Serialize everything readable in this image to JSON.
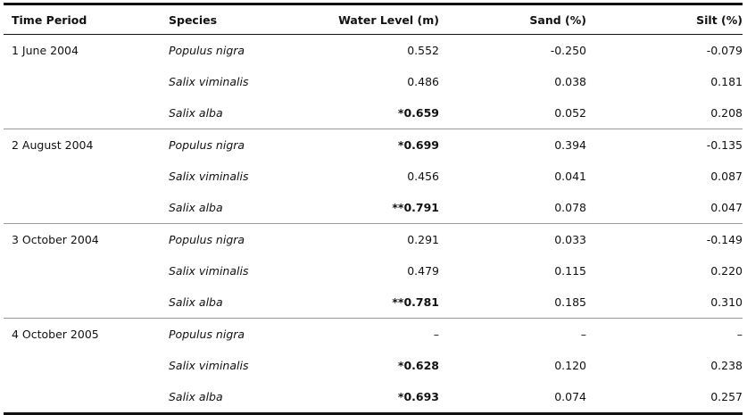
{
  "table": {
    "headers": [
      "Time Period",
      "Species",
      "Water Level (m)",
      "Sand (%)",
      "Silt (%)"
    ],
    "groups": [
      {
        "period": "1 June 2004",
        "rows": [
          {
            "species": "Populus nigra",
            "water": "0.552",
            "water_bold": false,
            "sand": "-0.250",
            "silt": "-0.079"
          },
          {
            "species": "Salix viminalis",
            "water": "0.486",
            "water_bold": false,
            "sand": "0.038",
            "silt": "0.181"
          },
          {
            "species": "Salix alba",
            "water": "*0.659",
            "water_bold": true,
            "sand": "0.052",
            "silt": "0.208"
          }
        ]
      },
      {
        "period": "2 August 2004",
        "rows": [
          {
            "species": "Populus nigra",
            "water": "*0.699",
            "water_bold": true,
            "sand": "0.394",
            "silt": "-0.135"
          },
          {
            "species": "Salix viminalis",
            "water": "0.456",
            "water_bold": false,
            "sand": "0.041",
            "silt": "0.087"
          },
          {
            "species": "Salix alba",
            "water": "**0.791",
            "water_bold": true,
            "sand": "0.078",
            "silt": "0.047"
          }
        ]
      },
      {
        "period": "3 October 2004",
        "rows": [
          {
            "species": "Populus nigra",
            "water": "0.291",
            "water_bold": false,
            "sand": "0.033",
            "silt": "-0.149"
          },
          {
            "species": "Salix viminalis",
            "water": "0.479",
            "water_bold": false,
            "sand": "0.115",
            "silt": "0.220"
          },
          {
            "species": "Salix alba",
            "water": "**0.781",
            "water_bold": true,
            "sand": "0.185",
            "silt": "0.310"
          }
        ]
      },
      {
        "period": "4 October 2005",
        "rows": [
          {
            "species": "Populus nigra",
            "water": "–",
            "water_bold": false,
            "sand": "–",
            "silt": "–"
          },
          {
            "species": "Salix viminalis",
            "water": "*0.628",
            "water_bold": true,
            "sand": "0.120",
            "silt": "0.238"
          },
          {
            "species": "Salix alba",
            "water": "*0.693",
            "water_bold": true,
            "sand": "0.074",
            "silt": "0.257"
          }
        ]
      }
    ]
  }
}
